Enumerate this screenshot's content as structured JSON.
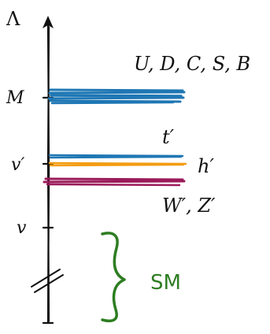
{
  "axis": {
    "label": "Λ",
    "ticks": [
      "M",
      "v′",
      "v"
    ]
  },
  "levels": {
    "heavy_quarks": {
      "label": "U, D, C, S, B",
      "color": "#1f77b4"
    },
    "top_partner": {
      "label": "t′",
      "color": "#1f77b4"
    },
    "higgs_partner": {
      "label": "h′",
      "color": "#f39c12"
    },
    "gauge_partners": {
      "label": "W′, Z′",
      "color": "#9b1b5a"
    }
  },
  "sm_bracket": {
    "label": "SM",
    "color": "#2e7d22"
  },
  "colors": {
    "axis": "#111111"
  }
}
